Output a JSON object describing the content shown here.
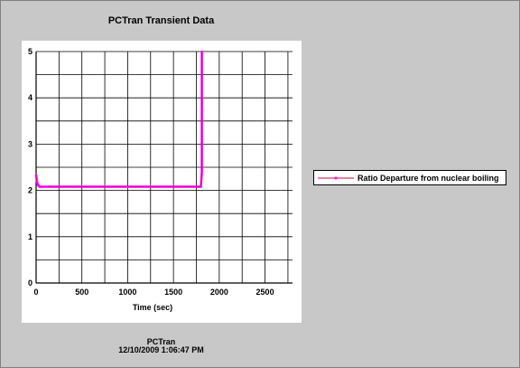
{
  "page": {
    "title": "PCTran Transient Data",
    "footer_source": "PCTran",
    "footer_timestamp": "12/10/2009 1:06:47 PM"
  },
  "chart_data": {
    "type": "line",
    "title": "PCTran Transient Data",
    "xlabel": "Time (sec)",
    "ylabel": "",
    "xlim": [
      0,
      2800
    ],
    "ylim": [
      0,
      5
    ],
    "x_ticks": [
      0,
      500,
      1000,
      1500,
      2000,
      2500
    ],
    "y_ticks": [
      0,
      1,
      2,
      3,
      4,
      5
    ],
    "x_grid_step": 250,
    "y_grid_step": 0.5,
    "grid": true,
    "legend_position": "right",
    "series": [
      {
        "name": "Ratio Departure from nuclear boiling",
        "color": "#ff00ff",
        "line_color": "#cc0044",
        "x": [
          0,
          10,
          20,
          30,
          40,
          60,
          100,
          200,
          400,
          600,
          800,
          1000,
          1200,
          1400,
          1600,
          1800,
          1810,
          1810,
          1810,
          1810
        ],
        "y": [
          2.32,
          2.18,
          2.12,
          2.09,
          2.08,
          2.08,
          2.08,
          2.08,
          2.08,
          2.08,
          2.08,
          2.08,
          2.08,
          2.08,
          2.08,
          2.08,
          2.4,
          3.1,
          3.72,
          5.0
        ]
      }
    ]
  }
}
